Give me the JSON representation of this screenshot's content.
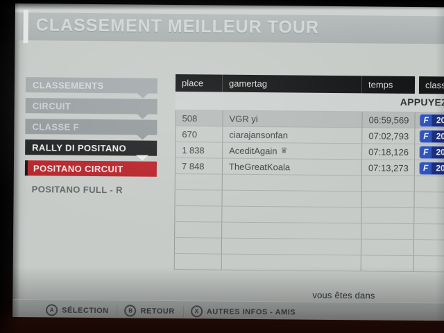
{
  "title": "CLASSEMENT MEILLEUR TOUR",
  "sidebar": {
    "items": [
      {
        "label": "CLASSEMENTS",
        "style": "gray"
      },
      {
        "label": "CIRCUIT",
        "style": "gray"
      },
      {
        "label": "CLASSE F",
        "style": "gray"
      },
      {
        "label": "RALLY DI POSITANO",
        "style": "black-selected"
      },
      {
        "label": "POSITANO CIRCUIT",
        "style": "red-active"
      },
      {
        "label": "POSITANO FULL - R",
        "style": "plain"
      }
    ]
  },
  "table": {
    "columns": [
      "place",
      "gamertag",
      "temps",
      "classe"
    ],
    "notice": "APPUYEZ SU",
    "rows": [
      {
        "place": "508",
        "gamertag": "VGR yi",
        "temps": "06:59,569",
        "class_letter": "F",
        "class_number": "20",
        "selected": true,
        "crown": false
      },
      {
        "place": "670",
        "gamertag": "ciarajansonfan",
        "temps": "07:02,793",
        "class_letter": "F",
        "class_number": "20",
        "selected": false,
        "crown": false
      },
      {
        "place": "1 838",
        "gamertag": "AceditAgain",
        "temps": "07:18,126",
        "class_letter": "F",
        "class_number": "20",
        "selected": false,
        "crown": true
      },
      {
        "place": "7 848",
        "gamertag": "TheGreatKoala",
        "temps": "07:13,273",
        "class_letter": "F",
        "class_number": "20",
        "selected": false,
        "crown": false
      }
    ],
    "empty_row_count": 6
  },
  "status_text": "vous êtes dans",
  "footer": {
    "buttons": [
      {
        "key": "A",
        "label": "SÉLECTION"
      },
      {
        "key": "B",
        "label": "RETOUR"
      },
      {
        "key": "X",
        "label": "AUTRES INFOS - AMIS"
      }
    ]
  },
  "icons": {
    "crown": "♛",
    "chevron": "chevron-down-icon"
  },
  "colors": {
    "screen_bg": "#c7cbc8",
    "accent_red": "#c22128",
    "selected_black": "#212324",
    "header_black": "#161718",
    "badge_blue": "#2e54c4",
    "badge_navy": "#182f86"
  }
}
